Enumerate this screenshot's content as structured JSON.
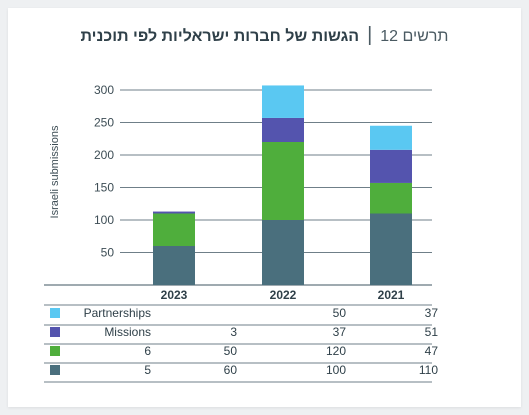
{
  "header": {
    "label": "תרשים 12",
    "separator": "|",
    "title": "הגשות של חברות ישראליות לפי תוכנית"
  },
  "chart_data": {
    "type": "bar",
    "stacked": true,
    "ylabel": "Israeli submissions",
    "ylim": [
      0,
      310
    ],
    "yticks": [
      50,
      100,
      150,
      200,
      250,
      300
    ],
    "grid": true,
    "categories": [
      "2023",
      "2022",
      "2021"
    ],
    "series": [
      {
        "name": "5",
        "color": "#4a6f7d",
        "values": [
          60,
          100,
          110
        ],
        "table_cells": [
          "60",
          "100",
          "110"
        ]
      },
      {
        "name": "6",
        "color": "#4fae3c",
        "values": [
          50,
          120,
          47
        ],
        "table_cells": [
          "50",
          "120",
          "47"
        ]
      },
      {
        "name": "Missions",
        "color": "#5454ae",
        "values": [
          3,
          37,
          51
        ],
        "table_cells": [
          "3",
          "37",
          "51"
        ]
      },
      {
        "name": "Partnerships",
        "color": "#5ac8f2",
        "values": [
          0,
          50,
          37
        ],
        "table_cells": [
          "",
          "50",
          "37"
        ]
      }
    ]
  }
}
